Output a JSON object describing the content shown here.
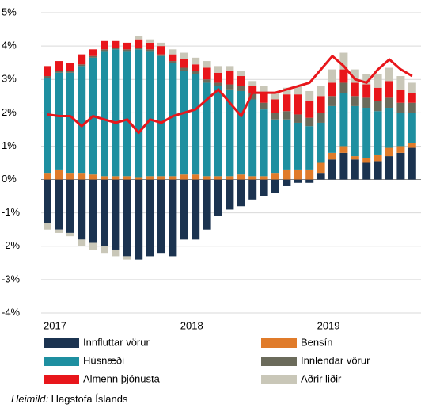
{
  "chart_data": {
    "type": "bar",
    "stacked": true,
    "categories": [
      "2017",
      null,
      null,
      null,
      null,
      null,
      null,
      null,
      null,
      null,
      null,
      null,
      "2018",
      null,
      null,
      null,
      null,
      null,
      null,
      null,
      null,
      null,
      null,
      null,
      "2019",
      null,
      null,
      null,
      null,
      null,
      null,
      null,
      null
    ],
    "series": [
      {
        "name": "Innfluttar vörur",
        "color": "#1b3350",
        "values": [
          -1.3,
          -1.5,
          -1.6,
          -1.8,
          -1.9,
          -2.0,
          -2.1,
          -2.3,
          -2.4,
          -2.3,
          -2.2,
          -2.3,
          -1.8,
          -1.8,
          -1.5,
          -1.1,
          -0.9,
          -0.8,
          -0.6,
          -0.5,
          -0.4,
          -0.2,
          -0.1,
          -0.1,
          0.2,
          0.6,
          0.8,
          0.6,
          0.5,
          0.55,
          0.7,
          0.8,
          0.95
        ]
      },
      {
        "name": "Bensín",
        "color": "#e07b2a",
        "values": [
          0.2,
          0.3,
          0.2,
          0.2,
          0.15,
          0.1,
          0.1,
          0.1,
          0.05,
          0.1,
          0.1,
          0.1,
          0.15,
          0.15,
          0.1,
          0.1,
          0.1,
          0.15,
          0.1,
          0.1,
          0.2,
          0.3,
          0.3,
          0.3,
          0.3,
          0.2,
          0.2,
          0.1,
          0.15,
          0.2,
          0.25,
          0.2,
          0.15
        ]
      },
      {
        "name": "Húsnæði",
        "color": "#1e8fa0",
        "values": [
          2.85,
          2.9,
          3.0,
          3.2,
          3.5,
          3.75,
          3.8,
          3.75,
          3.85,
          3.75,
          3.6,
          3.4,
          3.1,
          3.0,
          2.8,
          2.7,
          2.6,
          2.5,
          2.3,
          2.0,
          1.6,
          1.5,
          1.4,
          1.3,
          1.2,
          1.4,
          1.6,
          1.5,
          1.5,
          1.3,
          1.2,
          1.0,
          0.9
        ]
      },
      {
        "name": "Innlendar vörur",
        "color": "#6b6b5b",
        "values": [
          0.05,
          0.05,
          0.05,
          0.05,
          0.05,
          0.05,
          0.05,
          0.05,
          0.05,
          0.05,
          0.05,
          0.05,
          0.1,
          0.1,
          0.1,
          0.1,
          0.15,
          0.15,
          0.2,
          0.2,
          0.2,
          0.25,
          0.25,
          0.25,
          0.3,
          0.3,
          0.3,
          0.3,
          0.3,
          0.3,
          0.3,
          0.3,
          0.3
        ]
      },
      {
        "name": "Almenn þjónusta",
        "color": "#e8161b",
        "values": [
          0.3,
          0.3,
          0.25,
          0.3,
          0.2,
          0.25,
          0.2,
          0.2,
          0.25,
          0.2,
          0.25,
          0.2,
          0.25,
          0.2,
          0.35,
          0.3,
          0.4,
          0.3,
          0.2,
          0.3,
          0.4,
          0.5,
          0.6,
          0.5,
          0.5,
          0.4,
          0.4,
          0.4,
          0.4,
          0.4,
          0.5,
          0.4,
          0.3
        ]
      },
      {
        "name": "Aðrir liðir",
        "color": "#c9c7b8",
        "values": [
          -0.2,
          -0.1,
          -0.1,
          -0.2,
          -0.2,
          -0.2,
          -0.2,
          -0.1,
          0.1,
          0.1,
          0.1,
          0.15,
          0.2,
          0.2,
          0.2,
          0.2,
          0.15,
          0.15,
          0.15,
          0.2,
          0.2,
          0.2,
          0.25,
          0.3,
          0.3,
          0.4,
          0.5,
          0.4,
          0.3,
          0.4,
          0.4,
          0.4,
          0.3
        ]
      }
    ],
    "line": {
      "color": "#e8161b",
      "values": [
        1.95,
        1.9,
        1.9,
        1.6,
        1.9,
        1.8,
        1.7,
        1.8,
        1.4,
        1.8,
        1.7,
        1.9,
        2.0,
        2.1,
        2.4,
        2.7,
        2.3,
        1.9,
        2.6,
        2.6,
        2.6,
        2.7,
        2.8,
        2.9,
        3.3,
        3.7,
        3.4,
        3.0,
        2.9,
        3.3,
        3.6,
        3.3,
        3.1
      ]
    },
    "ylim": [
      -4,
      5
    ],
    "yticks": [
      {
        "value": -4,
        "label": "-4%"
      },
      {
        "value": -3,
        "label": "-3%"
      },
      {
        "value": -2,
        "label": "-2%"
      },
      {
        "value": -1,
        "label": "-1%"
      },
      {
        "value": 0,
        "label": "0%"
      },
      {
        "value": 1,
        "label": "1%"
      },
      {
        "value": 2,
        "label": "2%"
      },
      {
        "value": 3,
        "label": "3%"
      },
      {
        "value": 4,
        "label": "4%"
      },
      {
        "value": 5,
        "label": "5%"
      }
    ],
    "grid": true,
    "source_label": "Heimild:",
    "source": "Hagstofa Íslands"
  }
}
